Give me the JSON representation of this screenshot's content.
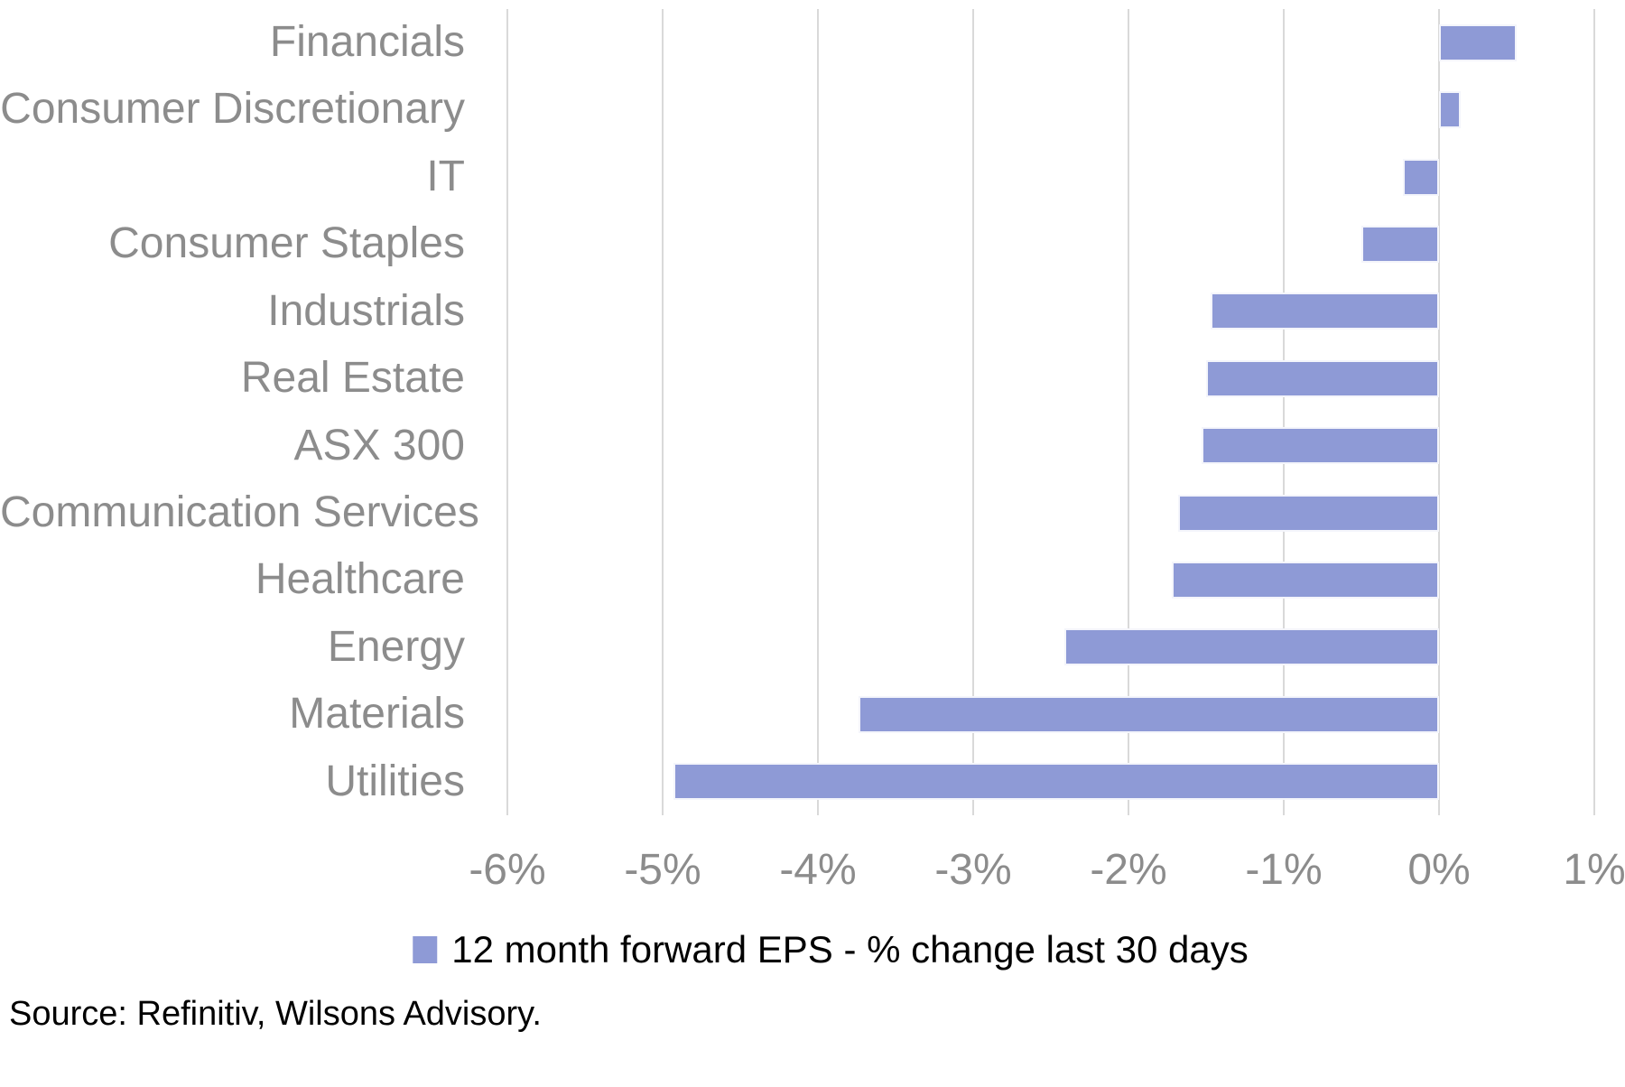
{
  "chart_data": {
    "type": "bar",
    "orientation": "horizontal",
    "categories": [
      "Financials",
      "Consumer Discretionary",
      "IT",
      "Consumer Staples",
      "Industrials",
      "Real Estate",
      "ASX 300",
      "Communication Services",
      "Healthcare",
      "Energy",
      "Materials",
      "Utilities"
    ],
    "values": [
      0.5,
      0.14,
      -0.23,
      -0.5,
      -1.47,
      -1.5,
      -1.53,
      -1.68,
      -1.72,
      -2.41,
      -3.74,
      -4.93
    ],
    "value_unit": "%",
    "legend": "12 month forward EPS - % change last 30 days",
    "legend_position": "bottom-center",
    "xlim": [
      -6,
      1
    ],
    "xticks": [
      -6,
      -5,
      -4,
      -3,
      -2,
      -1,
      0,
      1
    ],
    "xtick_labels": [
      "-6%",
      "-5%",
      "-4%",
      "-3%",
      "-2%",
      "-1%",
      "0%",
      "1%"
    ],
    "grid": "vertical",
    "bar_color": "#8E9AD6",
    "gridline_color": "#D9D9D9",
    "axis_label_color": "#8C8C8C"
  },
  "source": "Source: Refinitiv, Wilsons Advisory."
}
